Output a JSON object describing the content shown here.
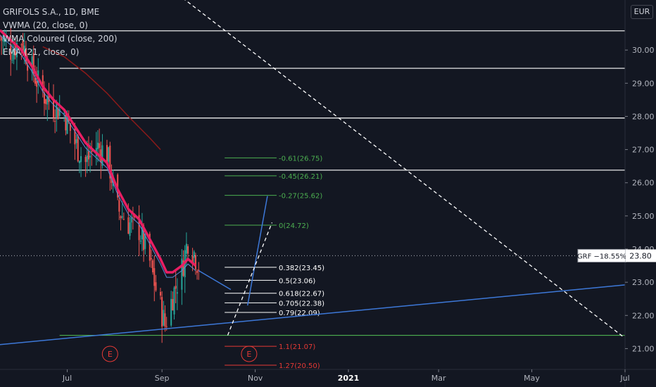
{
  "legend": {
    "symbol": "GRIFOLS S.A., 1D, BME",
    "indicators": [
      "VWMA (20, close, 0)",
      "WMA Coloured (close, 200)",
      "EMA (21, close, 0)"
    ]
  },
  "currency": "EUR",
  "price_label": {
    "name": "GRF −18.55%",
    "value": "23.80"
  },
  "colors": {
    "background": "#131722",
    "up_candle": "#26a69a",
    "down_candle": "#ef5350",
    "ema": "#e91e63",
    "wma200": "#8b1a1a",
    "vwma": "#5a8bd6",
    "trendline": "#3d78d8",
    "fib_up": "#4caf50",
    "fib_mid": "#ffffff",
    "fib_down": "#e53935",
    "horizontal": "#ffffff"
  },
  "chart_data": {
    "type": "candlestick",
    "y_axis": {
      "ylim": [
        20.5,
        31.0
      ],
      "ticks": [
        21.0,
        22.0,
        23.0,
        24.0,
        25.0,
        26.0,
        27.0,
        28.0,
        29.0,
        30.0
      ]
    },
    "x_axis": {
      "start": "2020-05-18",
      "end": "2021-07-01",
      "ticks": [
        {
          "label": "Jul",
          "date": "2020-07-01",
          "bold": false
        },
        {
          "label": "Sep",
          "date": "2020-09-01",
          "bold": false
        },
        {
          "label": "Nov",
          "date": "2020-11-01",
          "bold": false
        },
        {
          "label": "2021",
          "date": "2021-01-01",
          "bold": true
        },
        {
          "label": "Mar",
          "date": "2021-03-01",
          "bold": false
        },
        {
          "label": "May",
          "date": "2021-05-01",
          "bold": false
        },
        {
          "label": "Jul",
          "date": "2021-07-01",
          "bold": false
        }
      ]
    },
    "close_path": [
      [
        "2020-05-18",
        30.4
      ],
      [
        "2020-05-25",
        30.0
      ],
      [
        "2020-06-01",
        30.3
      ],
      [
        "2020-06-08",
        29.4
      ],
      [
        "2020-06-15",
        28.7
      ],
      [
        "2020-06-22",
        28.3
      ],
      [
        "2020-06-29",
        28.1
      ],
      [
        "2020-07-06",
        27.2
      ],
      [
        "2020-07-13",
        26.6
      ],
      [
        "2020-07-20",
        27.1
      ],
      [
        "2020-07-27",
        26.9
      ],
      [
        "2020-08-03",
        25.2
      ],
      [
        "2020-08-10",
        24.8
      ],
      [
        "2020-08-17",
        24.6
      ],
      [
        "2020-08-24",
        23.6
      ],
      [
        "2020-08-28",
        22.8
      ],
      [
        "2020-09-03",
        21.7
      ],
      [
        "2020-09-08",
        22.6
      ],
      [
        "2020-09-14",
        23.4
      ],
      [
        "2020-09-18",
        24.3
      ],
      [
        "2020-09-22",
        23.9
      ],
      [
        "2020-09-25",
        23.5
      ]
    ],
    "ema21": [
      [
        "2020-05-18",
        30.6
      ],
      [
        "2020-05-25",
        30.3
      ],
      [
        "2020-06-01",
        30.0
      ],
      [
        "2020-06-08",
        29.5
      ],
      [
        "2020-06-15",
        28.9
      ],
      [
        "2020-06-22",
        28.5
      ],
      [
        "2020-06-29",
        28.2
      ],
      [
        "2020-07-06",
        27.7
      ],
      [
        "2020-07-13",
        27.2
      ],
      [
        "2020-07-20",
        26.9
      ],
      [
        "2020-07-27",
        26.6
      ],
      [
        "2020-08-03",
        25.8
      ],
      [
        "2020-08-10",
        25.2
      ],
      [
        "2020-08-17",
        24.9
      ],
      [
        "2020-08-24",
        24.3
      ],
      [
        "2020-08-31",
        23.7
      ],
      [
        "2020-09-04",
        23.3
      ],
      [
        "2020-09-08",
        23.3
      ],
      [
        "2020-09-14",
        23.5
      ],
      [
        "2020-09-18",
        23.7
      ],
      [
        "2020-09-23",
        23.5
      ]
    ],
    "wma200": [
      [
        "2020-06-15",
        30.1
      ],
      [
        "2020-06-29",
        29.8
      ],
      [
        "2020-07-13",
        29.3
      ],
      [
        "2020-07-27",
        28.7
      ],
      [
        "2020-08-10",
        28.0
      ],
      [
        "2020-08-24",
        27.35
      ],
      [
        "2020-08-31",
        27.0
      ]
    ],
    "horizontal_lines": [
      {
        "price": 30.58,
        "from": "2020-05-18",
        "to": "2021-07-01"
      },
      {
        "price": 29.45,
        "from": "2020-06-26",
        "to": "2021-07-01"
      },
      {
        "price": 27.95,
        "from": "2020-05-18",
        "to": "2021-07-01"
      },
      {
        "price": 26.38,
        "from": "2020-06-26",
        "to": "2021-07-01"
      },
      {
        "price": 21.4,
        "from": "2020-06-26",
        "to": "2021-07-01"
      }
    ],
    "fib_levels": [
      {
        "label": "-0.61(26.75)",
        "price": 26.75,
        "group": "up"
      },
      {
        "label": "-0.45(26.21)",
        "price": 26.21,
        "group": "up"
      },
      {
        "label": "-0.27(25.62)",
        "price": 25.62,
        "group": "up"
      },
      {
        "label": "0(24.72)",
        "price": 24.72,
        "group": "up"
      },
      {
        "label": "0.382(23.45)",
        "price": 23.45,
        "group": "mid"
      },
      {
        "label": "0.5(23.06)",
        "price": 23.06,
        "group": "mid"
      },
      {
        "label": "0.618(22.67)",
        "price": 22.67,
        "group": "mid"
      },
      {
        "label": "0.705(22.38)",
        "price": 22.38,
        "group": "mid"
      },
      {
        "label": "0.79(22.09)",
        "price": 22.09,
        "group": "mid"
      },
      {
        "label": "1.1(21.07)",
        "price": 21.07,
        "group": "down"
      },
      {
        "label": "1.27(20.50)",
        "price": 20.5,
        "group": "down"
      }
    ],
    "fib_range": {
      "from": "2020-10-12",
      "to": "2020-11-15"
    },
    "trendlines": [
      {
        "points": [
          [
            "2020-05-18",
            21.12
          ],
          [
            "2021-07-01",
            22.92
          ]
        ],
        "style": "solid"
      },
      {
        "points": [
          [
            "2020-09-25",
            23.35
          ],
          [
            "2020-10-16",
            22.78
          ]
        ],
        "style": "solid"
      },
      {
        "points": [
          [
            "2020-10-27",
            22.3
          ],
          [
            "2020-11-09",
            25.6
          ]
        ],
        "style": "solid"
      }
    ],
    "dashed_lines": [
      {
        "points": [
          [
            "2020-10-14",
            21.4
          ],
          [
            "2020-11-12",
            24.8
          ]
        ]
      },
      {
        "points": [
          [
            "2020-09-08",
            31.8
          ],
          [
            "2021-06-30",
            21.35
          ]
        ]
      }
    ],
    "earnings_markers": [
      {
        "label": "E",
        "date": "2020-07-29"
      },
      {
        "label": "E",
        "date": "2020-10-28"
      }
    ]
  }
}
